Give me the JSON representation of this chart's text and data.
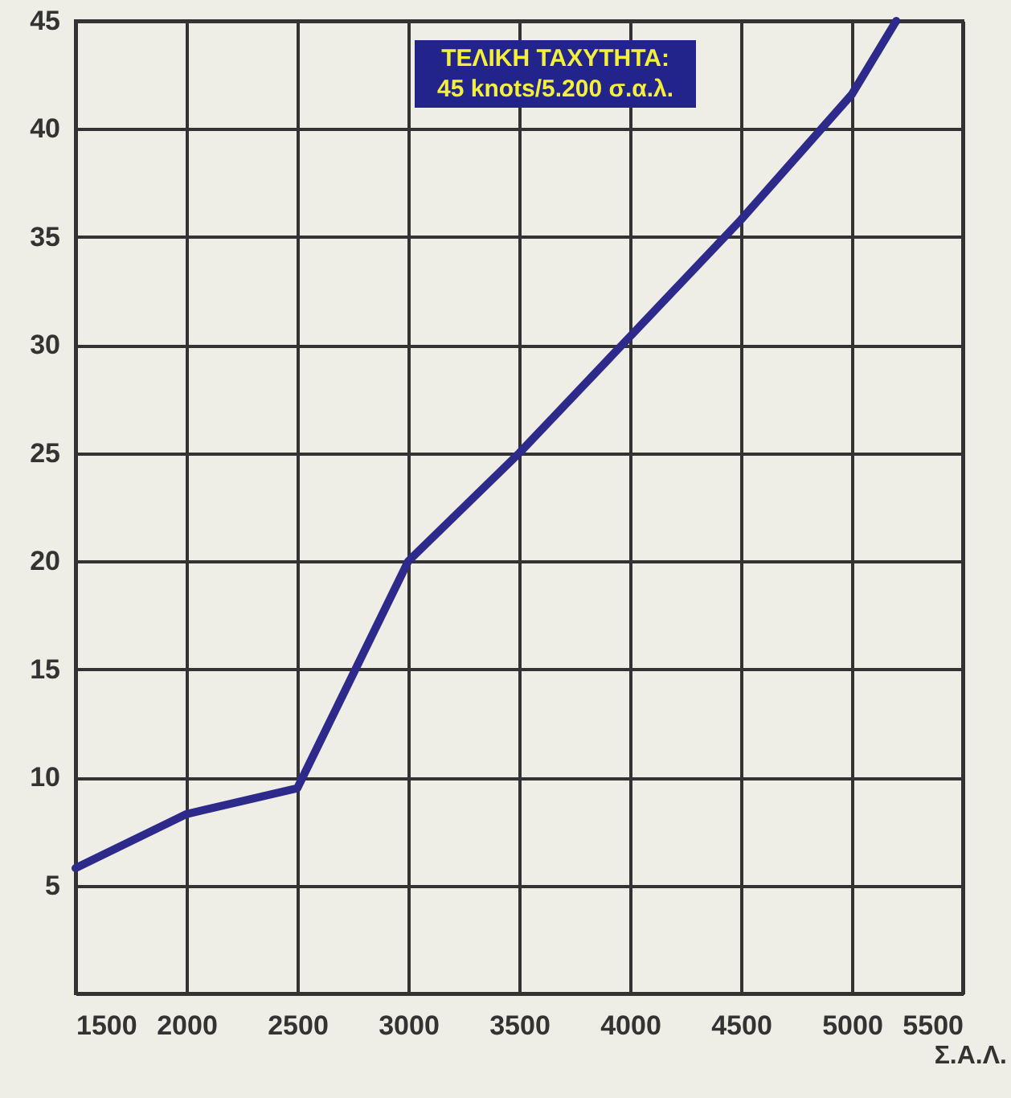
{
  "chart_data": {
    "type": "line",
    "xlabel": "Σ.Α.Λ.",
    "annotations": [
      "ΤΕΛΙΚΗ ΤΑΧΥΤΗΤΑ:\n45 knots/5.200 σ.α.λ."
    ],
    "series": [
      {
        "color": "#2e2a8c",
        "x": [
          1500,
          2000,
          2500,
          3000,
          3500,
          4000,
          4500,
          5000,
          5200
        ],
        "values": [
          5.8,
          8.3,
          9.5,
          20,
          25,
          30.4,
          35.8,
          41.6,
          45
        ]
      }
    ],
    "xlim": [
      1500,
      5500
    ],
    "xticks": [
      1500,
      2000,
      2500,
      3000,
      3500,
      4000,
      4500,
      5000,
      5500
    ],
    "ylim": [
      0,
      45
    ],
    "yticks": [
      5,
      10,
      15,
      20,
      25,
      30,
      35,
      40,
      45
    ],
    "grid": true,
    "marker": "none",
    "line_style": "solid"
  }
}
